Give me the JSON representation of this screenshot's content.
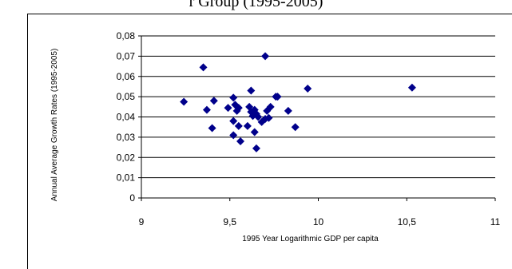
{
  "title_fragment": "r Group (1995-2005)",
  "chart_data": {
    "type": "scatter",
    "title": "",
    "xlabel": "1995 Year Logarithmic GDP per capita",
    "ylabel": "Annual Average Growth Rates (1995-2005)",
    "xlim": [
      9,
      11
    ],
    "ylim": [
      0,
      0.08
    ],
    "x_ticks": [
      9,
      9.5,
      10,
      10.5,
      11
    ],
    "x_tick_labels": [
      "9",
      "9,5",
      "10",
      "10,5",
      "11"
    ],
    "y_ticks": [
      0,
      0.01,
      0.02,
      0.03,
      0.04,
      0.05,
      0.06,
      0.07,
      0.08
    ],
    "y_tick_labels": [
      "0",
      "0,01",
      "0,02",
      "0,03",
      "0,04",
      "0,05",
      "0,06",
      "0,07",
      "0,08"
    ],
    "grid": "horizontal",
    "legend": "none",
    "marker_color": "#00008B",
    "points": [
      {
        "x": 9.24,
        "y": 0.0475
      },
      {
        "x": 9.35,
        "y": 0.0645
      },
      {
        "x": 9.37,
        "y": 0.0435
      },
      {
        "x": 9.4,
        "y": 0.0345
      },
      {
        "x": 9.41,
        "y": 0.048
      },
      {
        "x": 9.49,
        "y": 0.0445
      },
      {
        "x": 9.52,
        "y": 0.0495
      },
      {
        "x": 9.52,
        "y": 0.038
      },
      {
        "x": 9.52,
        "y": 0.031
      },
      {
        "x": 9.53,
        "y": 0.046
      },
      {
        "x": 9.54,
        "y": 0.043
      },
      {
        "x": 9.55,
        "y": 0.0445
      },
      {
        "x": 9.55,
        "y": 0.0355
      },
      {
        "x": 9.56,
        "y": 0.028
      },
      {
        "x": 9.6,
        "y": 0.0355
      },
      {
        "x": 9.61,
        "y": 0.045
      },
      {
        "x": 9.62,
        "y": 0.053
      },
      {
        "x": 9.62,
        "y": 0.0425
      },
      {
        "x": 9.63,
        "y": 0.0405
      },
      {
        "x": 9.64,
        "y": 0.0435
      },
      {
        "x": 9.64,
        "y": 0.0325
      },
      {
        "x": 9.65,
        "y": 0.0245
      },
      {
        "x": 9.65,
        "y": 0.0415
      },
      {
        "x": 9.66,
        "y": 0.04
      },
      {
        "x": 9.68,
        "y": 0.0375
      },
      {
        "x": 9.7,
        "y": 0.07
      },
      {
        "x": 9.7,
        "y": 0.039
      },
      {
        "x": 9.71,
        "y": 0.043
      },
      {
        "x": 9.72,
        "y": 0.0395
      },
      {
        "x": 9.73,
        "y": 0.045
      },
      {
        "x": 9.76,
        "y": 0.05
      },
      {
        "x": 9.77,
        "y": 0.05
      },
      {
        "x": 9.83,
        "y": 0.043
      },
      {
        "x": 9.87,
        "y": 0.035
      },
      {
        "x": 9.94,
        "y": 0.054
      },
      {
        "x": 10.53,
        "y": 0.0545
      }
    ]
  }
}
